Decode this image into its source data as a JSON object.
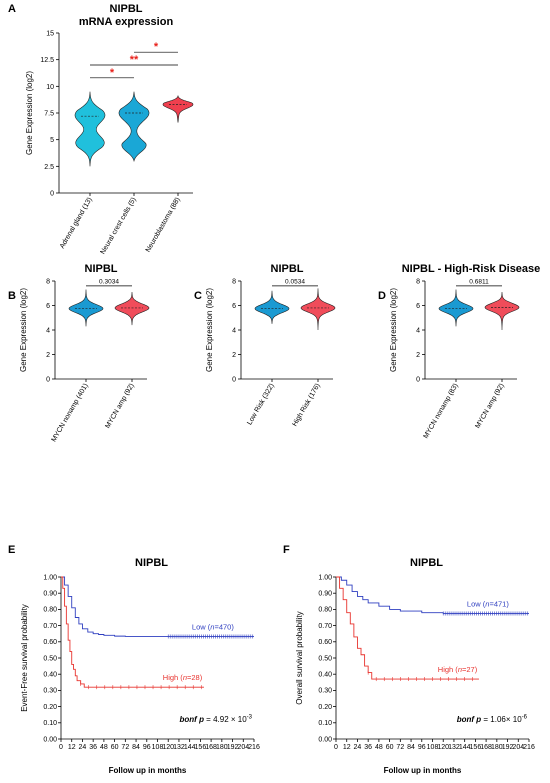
{
  "colors": {
    "adrenal": "#20c0dc",
    "neural": "#1aa7d6",
    "neuroblastoma": "#ef3f4e",
    "blue_violin": "#1a9ad2",
    "red_violin": "#f04c5a",
    "km_low": "#2f3fc0",
    "km_high": "#e8332e",
    "sig": "#e8201a"
  },
  "chart_data": [
    {
      "panel": "A",
      "type": "violin",
      "title": "NIPBL",
      "subtitle": "mRNA expression",
      "ylabel": "Gene Expression (log2)",
      "ylim": [
        0,
        15
      ],
      "yticks": [
        "0",
        "2.5",
        "5",
        "7.5",
        "10",
        "12.5",
        "15"
      ],
      "categories": [
        "Adrenal gland (13)",
        "Neural crest cells (5)",
        "Neuroblastoma (88)"
      ],
      "series": [
        {
          "median": 7.2,
          "min": 2.5,
          "max": 9.5,
          "mode_low": 4.7,
          "mode_high": 7.3
        },
        {
          "median": 7.5,
          "min": 3.0,
          "max": 9.5,
          "mode_low": 4.2,
          "mode_high": 7.5
        },
        {
          "median": 8.3,
          "min": 6.6,
          "max": 9.1,
          "mode_low": 8.2,
          "mode_high": 8.3
        }
      ],
      "significance": [
        {
          "from": 0,
          "to": 2,
          "label": "**",
          "y": 12.0
        },
        {
          "from": 0,
          "to": 1,
          "label": "*",
          "y": 10.8
        },
        {
          "from": 1,
          "to": 2,
          "label": "*",
          "y": 13.2
        }
      ]
    },
    {
      "panel": "B",
      "type": "violin",
      "title": "NIPBL",
      "ylabel": "Gene Expression (log2)",
      "ylim": [
        0,
        8
      ],
      "yticks": [
        "0",
        "2",
        "4",
        "6",
        "8"
      ],
      "categories": [
        "MYCN nonamp (401)",
        "MYCN amp (92)"
      ],
      "series": [
        {
          "median": 5.75,
          "min": 4.3,
          "max": 7.3
        },
        {
          "median": 5.8,
          "min": 4.4,
          "max": 7.1
        }
      ],
      "pvalue": "0.3034"
    },
    {
      "panel": "C",
      "type": "violin",
      "title": "NIPBL",
      "ylabel": "Gene Expression (log2)",
      "ylim": [
        0,
        8
      ],
      "yticks": [
        "0",
        "2",
        "4",
        "6",
        "8"
      ],
      "categories": [
        "Low Risk (322)",
        "High Risk (176)"
      ],
      "series": [
        {
          "median": 5.75,
          "min": 4.5,
          "max": 7.2
        },
        {
          "median": 5.8,
          "min": 4.0,
          "max": 7.4
        }
      ],
      "pvalue": "0.0534"
    },
    {
      "panel": "D",
      "type": "violin",
      "title": "NIPBL - High-Risk Disease",
      "ylabel": "Gene Expression (log2)",
      "ylim": [
        0,
        8
      ],
      "yticks": [
        "0",
        "2",
        "4",
        "6",
        "8"
      ],
      "categories": [
        "MYCN nonamp (83)",
        "MYCN amp (92)"
      ],
      "series": [
        {
          "median": 5.75,
          "min": 4.3,
          "max": 7.3
        },
        {
          "median": 5.85,
          "min": 4.0,
          "max": 7.1
        }
      ],
      "pvalue": "0.6811"
    },
    {
      "panel": "E",
      "type": "line",
      "title": "NIPBL",
      "ylabel": "Event-Free survival probability",
      "xlabel": "Follow up in months",
      "xlim": [
        0,
        216
      ],
      "ylim": [
        0,
        1
      ],
      "xticks": [
        "0",
        "12",
        "24",
        "36",
        "48",
        "60",
        "72",
        "84",
        "96",
        "108",
        "120",
        "132",
        "144",
        "156",
        "168",
        "180",
        "192",
        "204",
        "216"
      ],
      "yticks": [
        "0.00",
        "0.10",
        "0.20",
        "0.30",
        "0.40",
        "0.50",
        "0.60",
        "0.70",
        "0.80",
        "0.90",
        "1.00"
      ],
      "series": [
        {
          "name_prefix": "Low (",
          "n": "470",
          "x": [
            0,
            4,
            8,
            12,
            16,
            20,
            24,
            30,
            36,
            42,
            48,
            60,
            72,
            96,
            120,
            150,
            180,
            216
          ],
          "y": [
            1.0,
            0.95,
            0.88,
            0.81,
            0.75,
            0.71,
            0.68,
            0.66,
            0.65,
            0.645,
            0.64,
            0.635,
            0.633,
            0.633,
            0.633,
            0.633,
            0.633,
            0.633
          ]
        },
        {
          "name_prefix": "High (",
          "n": "28",
          "x": [
            0,
            2,
            4,
            6,
            8,
            10,
            12,
            14,
            16,
            18,
            22,
            26,
            30,
            160
          ],
          "y": [
            1.0,
            0.93,
            0.82,
            0.71,
            0.61,
            0.54,
            0.46,
            0.43,
            0.39,
            0.36,
            0.34,
            0.32,
            0.32,
            0.32
          ]
        }
      ],
      "bonf_label": "bonf p",
      "bonf_value": "= 4.92 × 10",
      "bonf_exp": "-3"
    },
    {
      "panel": "F",
      "type": "line",
      "title": "NIPBL",
      "ylabel": "Overall survival probability",
      "xlabel": "Follow up in months",
      "xlim": [
        0,
        216
      ],
      "ylim": [
        0,
        1
      ],
      "xticks": [
        "0",
        "12",
        "24",
        "36",
        "48",
        "60",
        "72",
        "84",
        "96",
        "108",
        "120",
        "132",
        "144",
        "156",
        "168",
        "180",
        "192",
        "204",
        "216"
      ],
      "yticks": [
        "0.00",
        "0.10",
        "0.20",
        "0.30",
        "0.40",
        "0.50",
        "0.60",
        "0.70",
        "0.80",
        "0.90",
        "1.00"
      ],
      "series": [
        {
          "name_prefix": "Low (",
          "n": "471",
          "x": [
            0,
            6,
            12,
            18,
            24,
            30,
            36,
            48,
            60,
            72,
            96,
            120,
            150,
            180,
            216
          ],
          "y": [
            1.0,
            0.98,
            0.95,
            0.91,
            0.88,
            0.86,
            0.84,
            0.82,
            0.8,
            0.79,
            0.78,
            0.775,
            0.775,
            0.775,
            0.775
          ]
        },
        {
          "name_prefix": "High (",
          "n": "27",
          "x": [
            0,
            4,
            8,
            12,
            16,
            20,
            24,
            28,
            32,
            36,
            40,
            44,
            160
          ],
          "y": [
            1.0,
            0.93,
            0.86,
            0.78,
            0.71,
            0.63,
            0.56,
            0.52,
            0.45,
            0.41,
            0.37,
            0.37,
            0.37
          ]
        }
      ],
      "bonf_label": "bonf p",
      "bonf_value": "= 1.06× 10",
      "bonf_exp": "-6"
    }
  ]
}
